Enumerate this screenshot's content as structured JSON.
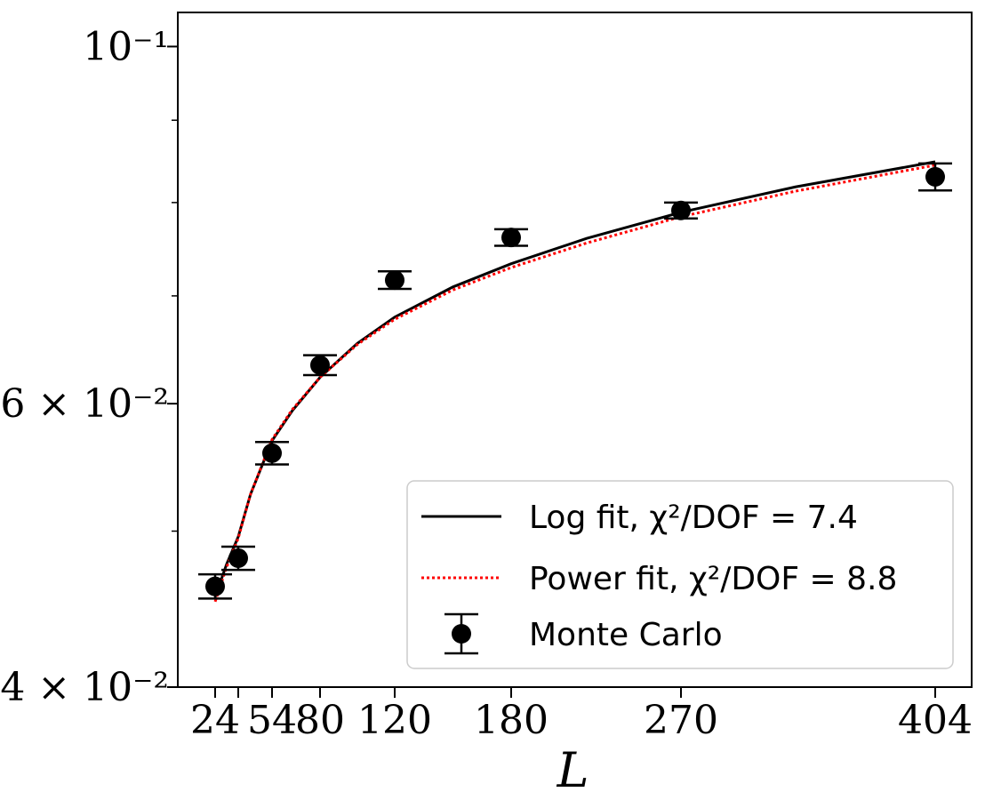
{
  "chart_data": {
    "type": "scatter",
    "xlabel": "L",
    "ylabel": "",
    "x_scale": "sqrt-like",
    "y_scale": "log",
    "xlim": [
      15,
      420
    ],
    "ylim": [
      0.04,
      0.105
    ],
    "x_ticks": [
      24,
      32,
      54,
      80,
      120,
      180,
      270,
      404
    ],
    "x_tick_labels": [
      "24",
      "",
      "54",
      "80",
      "120",
      "180",
      "270",
      "404"
    ],
    "y_ticks_major": [
      {
        "value": 0.04,
        "label": "4 × 10⁻²"
      },
      {
        "value": 0.06,
        "label": "6 × 10⁻²"
      },
      {
        "value": 0.1,
        "label": "10⁻¹"
      }
    ],
    "y_ticks_minor": [
      0.05,
      0.07,
      0.08,
      0.09
    ],
    "grid": false,
    "legend_position": "lower-right",
    "series": [
      {
        "name": "Log fit, χ²/DOF = 7.4",
        "kind": "line",
        "color": "#000000",
        "style": "solid",
        "x": [
          24,
          28,
          32,
          40,
          54,
          65,
          80,
          100,
          120,
          150,
          180,
          220,
          270,
          330,
          404
        ],
        "y": [
          0.0455,
          0.0477,
          0.0496,
          0.0527,
          0.0569,
          0.0594,
          0.0623,
          0.0654,
          0.0679,
          0.0709,
          0.0733,
          0.076,
          0.0789,
          0.0818,
          0.0848
        ]
      },
      {
        "name": "Power fit, χ²/DOF = 8.8",
        "kind": "line",
        "color": "#ff0000",
        "style": "dotted",
        "x": [
          24,
          28,
          32,
          40,
          54,
          65,
          80,
          100,
          120,
          150,
          180,
          220,
          270,
          330,
          404
        ],
        "y": [
          0.0452,
          0.0475,
          0.0495,
          0.0527,
          0.057,
          0.0595,
          0.0623,
          0.0653,
          0.0677,
          0.0706,
          0.0729,
          0.0755,
          0.0784,
          0.0813,
          0.0844
        ]
      },
      {
        "name": "Monte Carlo",
        "kind": "errorbar",
        "color": "#000000",
        "x": [
          24,
          32,
          54,
          80,
          120,
          180,
          270,
          404
        ],
        "y": [
          0.0462,
          0.0481,
          0.0559,
          0.0634,
          0.0716,
          0.0761,
          0.0791,
          0.083
        ],
        "yerr": [
          0.0008,
          0.0008,
          0.0009,
          0.0009,
          0.0009,
          0.0009,
          0.0009,
          0.0016
        ]
      }
    ]
  }
}
